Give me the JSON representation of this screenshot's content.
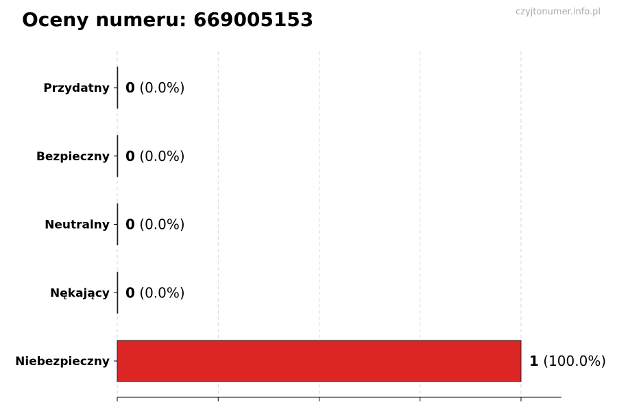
{
  "chart_data": {
    "type": "bar",
    "orientation": "horizontal",
    "title": "Oceny numeru: 669005153",
    "watermark": "czyjtonumer.info.pl",
    "categories": [
      "Przydatny",
      "Bezpieczny",
      "Neutralny",
      "Nękający",
      "Niebezpieczny"
    ],
    "values": [
      0,
      0,
      0,
      0,
      1
    ],
    "percent_labels": [
      "(0.0%)",
      "(0.0%)",
      "(0.0%)",
      "(0.0%)",
      "(100.0%)"
    ],
    "xlim": [
      0,
      1.1
    ],
    "xticks": [
      0,
      0.25,
      0.5,
      0.75,
      1
    ],
    "xtick_labels_shown": false,
    "grid": "x, dashed",
    "bar_colors": [
      "#2ca02c",
      "#2ca02c",
      "#999999",
      "#ff7f0e",
      "#dc2626"
    ],
    "xlabel": "",
    "ylabel": ""
  }
}
